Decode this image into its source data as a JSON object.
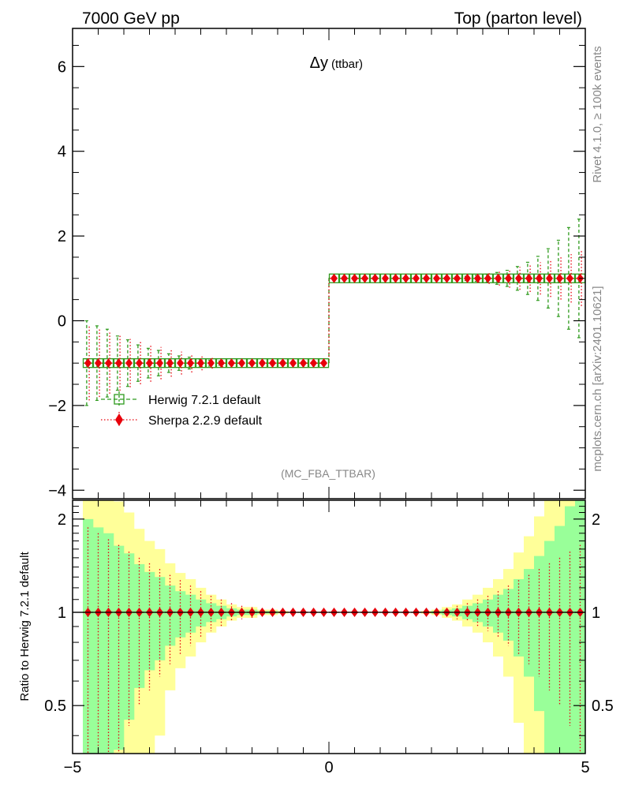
{
  "header": {
    "left": "7000 GeV pp",
    "right": "Top (parton level)"
  },
  "side_labels": {
    "rivet": "Rivet 4.1.0, ≥ 100k events",
    "mcplots": "mcplots.cern.ch [arXiv:2401.10621]"
  },
  "analysis_id": "(MC_FBA_TTBAR)",
  "colors": {
    "herwig": "#2e9a1d",
    "sherpa": "#e8000b",
    "band_yellow": "#ffff99",
    "band_green": "#99ff99"
  },
  "chart_data": [
    {
      "type": "step-histogram",
      "title": "Δy",
      "title_sub": "(ttbar)",
      "xlim": [
        -5,
        5
      ],
      "ylim": [
        -4.2,
        6.9
      ],
      "x_ticks": [
        "−5",
        "0",
        "5"
      ],
      "y_ticks": [
        "−4",
        "−2",
        "0",
        "2",
        "4",
        "6"
      ],
      "y_tick_values": [
        -4,
        -2,
        0,
        2,
        4,
        6
      ],
      "bin_edges_range": [
        -4.8,
        5.0
      ],
      "n_bins": 49,
      "legend": {
        "position": "lower-left",
        "entries": [
          "Herwig 7.2.1 default",
          "Sherpa 2.2.9 default"
        ]
      },
      "series": [
        {
          "name": "Herwig 7.2.1 default",
          "marker": "open-square",
          "line": "dashed",
          "values": [
            -1,
            -1,
            -1,
            -1,
            -1,
            -1,
            -1,
            -1,
            -1,
            -1,
            -1,
            -1,
            -1,
            -1,
            -1,
            -1,
            -1,
            -1,
            -1,
            -1,
            -1,
            -1,
            -1,
            -1,
            1,
            1,
            1,
            1,
            1,
            1,
            1,
            1,
            1,
            1,
            1,
            1,
            1,
            1,
            1,
            1,
            1,
            1,
            1,
            1,
            1,
            1,
            1,
            1,
            1
          ],
          "errors": [
            1.0,
            0.88,
            0.8,
            0.64,
            0.55,
            0.43,
            0.35,
            0.3,
            0.22,
            0.17,
            0.14,
            0.1,
            0.07,
            0.05,
            0.03,
            0.02,
            0.02,
            0.01,
            0.01,
            0.0,
            0.0,
            0.0,
            0.0,
            0.0,
            0.0,
            0.0,
            0.0,
            0.0,
            0.0,
            0.0,
            0.0,
            0.0,
            0.0,
            0.0,
            0.01,
            0.02,
            0.03,
            0.05,
            0.07,
            0.1,
            0.14,
            0.19,
            0.28,
            0.38,
            0.52,
            0.7,
            0.9,
            1.2,
            1.4
          ]
        },
        {
          "name": "Sherpa 2.2.9 default",
          "marker": "filled-diamond",
          "line": "dotted",
          "values": [
            -1,
            -1,
            -1,
            -1,
            -1,
            -1,
            -1,
            -1,
            -1,
            -1,
            -1,
            -1,
            -1,
            -1,
            -1,
            -1,
            -1,
            -1,
            -1,
            -1,
            -1,
            -1,
            -1,
            -1,
            1,
            1,
            1,
            1,
            1,
            1,
            1,
            1,
            1,
            1,
            1,
            1,
            1,
            1,
            1,
            1,
            1,
            1,
            1,
            1,
            1,
            1,
            1,
            1,
            1
          ],
          "errors": [
            0.88,
            0.8,
            0.72,
            0.65,
            0.57,
            0.5,
            0.44,
            0.38,
            0.32,
            0.27,
            0.22,
            0.17,
            0.13,
            0.1,
            0.07,
            0.05,
            0.04,
            0.03,
            0.02,
            0.01,
            0.0,
            0.0,
            0.0,
            0.0,
            0.0,
            0.0,
            0.0,
            0.0,
            0.0,
            0.0,
            0.0,
            0.0,
            0.0,
            0.01,
            0.02,
            0.03,
            0.05,
            0.07,
            0.1,
            0.13,
            0.17,
            0.22,
            0.27,
            0.32,
            0.38,
            0.44,
            0.5,
            0.57,
            0.65
          ]
        }
      ]
    },
    {
      "type": "ratio",
      "ylabel": "Ratio to Herwig 7.2.1 default",
      "xlim": [
        -5,
        5
      ],
      "ylim": [
        0.35,
        2.3
      ],
      "y_scale": "log",
      "y_ticks": [
        "0.5",
        "1",
        "2"
      ],
      "y_tick_values": [
        0.5,
        1,
        2
      ],
      "bands": {
        "green_halfwidth": [
          1.0,
          0.88,
          0.8,
          0.64,
          0.55,
          0.43,
          0.35,
          0.3,
          0.22,
          0.17,
          0.14,
          0.1,
          0.07,
          0.05,
          0.03,
          0.02,
          0.02,
          0.01,
          0.01,
          0.0,
          0.0,
          0.0,
          0.0,
          0.0,
          0.0,
          0.0,
          0.0,
          0.0,
          0.0,
          0.0,
          0.0,
          0.0,
          0.0,
          0.0,
          0.01,
          0.02,
          0.03,
          0.05,
          0.07,
          0.1,
          0.14,
          0.19,
          0.28,
          0.38,
          0.52,
          0.7,
          0.9,
          1.2,
          1.4
        ],
        "yellow_halfwidth": [
          2.0,
          1.76,
          1.6,
          1.28,
          1.1,
          0.86,
          0.7,
          0.6,
          0.44,
          0.34,
          0.28,
          0.2,
          0.14,
          0.1,
          0.06,
          0.04,
          0.04,
          0.02,
          0.02,
          0.01,
          0.0,
          0.0,
          0.0,
          0.0,
          0.0,
          0.0,
          0.0,
          0.0,
          0.0,
          0.0,
          0.0,
          0.0,
          0.0,
          0.01,
          0.02,
          0.04,
          0.06,
          0.1,
          0.14,
          0.2,
          0.28,
          0.38,
          0.56,
          0.76,
          1.04,
          1.4,
          1.8,
          2.4,
          2.8
        ]
      },
      "series": [
        {
          "name": "Sherpa 2.2.9 default",
          "values": [
            1,
            1,
            1,
            1,
            1,
            1,
            1,
            1,
            1,
            1,
            1,
            1,
            1,
            1,
            1,
            1,
            1,
            1,
            1,
            1,
            1,
            1,
            1,
            1,
            1,
            1,
            1,
            1,
            1,
            1,
            1,
            1,
            1,
            1,
            1,
            1,
            1,
            1,
            1,
            1,
            1,
            1,
            1,
            1,
            1,
            1,
            1,
            1,
            1
          ],
          "errors": [
            0.88,
            0.8,
            0.72,
            0.65,
            0.57,
            0.5,
            0.44,
            0.38,
            0.32,
            0.27,
            0.22,
            0.17,
            0.13,
            0.1,
            0.07,
            0.05,
            0.04,
            0.03,
            0.02,
            0.01,
            0.0,
            0.0,
            0.0,
            0.0,
            0.0,
            0.0,
            0.0,
            0.0,
            0.0,
            0.0,
            0.0,
            0.0,
            0.0,
            0.01,
            0.02,
            0.03,
            0.05,
            0.07,
            0.1,
            0.13,
            0.17,
            0.22,
            0.27,
            0.32,
            0.38,
            0.44,
            0.5,
            0.57,
            0.65
          ]
        }
      ]
    }
  ]
}
